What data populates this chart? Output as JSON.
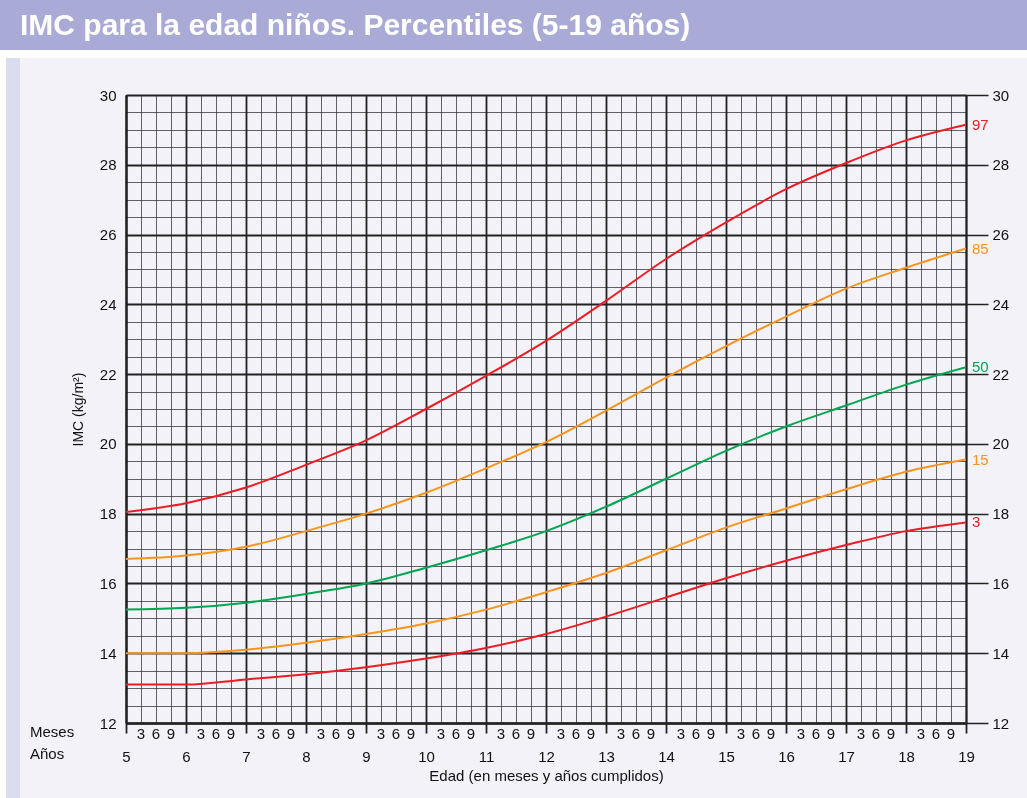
{
  "chart_data": {
    "type": "line",
    "title": "IMC para la edad niños. Percentiles (5-19 años)",
    "xlabel": "Edad (en meses y años cumplidos)",
    "ylabel": "IMC (kg/m²)",
    "x": [
      5,
      6,
      7,
      8,
      9,
      10,
      11,
      12,
      13,
      14,
      15,
      16,
      17,
      18,
      19
    ],
    "series": [
      {
        "name": "97",
        "color": "#ed1c24",
        "values": [
          18.05,
          18.3,
          18.75,
          19.4,
          20.1,
          21.0,
          21.95,
          22.95,
          24.1,
          25.3,
          26.35,
          27.3,
          28.05,
          28.7,
          29.15
        ]
      },
      {
        "name": "85",
        "color": "#f7941d",
        "values": [
          16.7,
          16.8,
          17.05,
          17.5,
          18.0,
          18.6,
          19.3,
          20.05,
          20.95,
          21.9,
          22.8,
          23.65,
          24.45,
          25.05,
          25.6
        ]
      },
      {
        "name": "50",
        "color": "#00a651",
        "values": [
          15.25,
          15.3,
          15.45,
          15.7,
          16.0,
          16.45,
          16.95,
          17.5,
          18.2,
          19.0,
          19.8,
          20.5,
          21.1,
          21.7,
          22.2
        ]
      },
      {
        "name": "15",
        "color": "#f7941d",
        "values": [
          14.0,
          14.0,
          14.1,
          14.3,
          14.55,
          14.85,
          15.25,
          15.75,
          16.3,
          16.95,
          17.6,
          18.15,
          18.7,
          19.2,
          19.55
        ]
      },
      {
        "name": "3",
        "color": "#ed1c24",
        "values": [
          13.1,
          13.1,
          13.25,
          13.4,
          13.6,
          13.85,
          14.15,
          14.55,
          15.05,
          15.6,
          16.15,
          16.65,
          17.1,
          17.5,
          17.75
        ]
      }
    ],
    "xlim": [
      5,
      19
    ],
    "xticks": [
      5,
      {
        "value": 5.25,
        "label": null
      },
      {
        "value": 5.5,
        "label": null
      },
      {
        "value": 5.75,
        "label": null
      },
      6,
      {
        "value": 6.25,
        "label": null
      },
      {
        "value": 6.5,
        "label": null
      },
      {
        "value": 6.75,
        "label": null
      },
      7,
      {
        "value": 7.25,
        "label": null
      },
      {
        "value": 7.5,
        "label": null
      },
      {
        "value": 7.75,
        "label": null
      },
      8,
      {
        "value": 8.25,
        "label": null
      },
      {
        "value": 8.5,
        "label": null
      },
      {
        "value": 8.75,
        "label": null
      },
      9,
      {
        "value": 9.25,
        "label": null
      },
      {
        "value": 9.5,
        "label": null
      },
      {
        "value": 9.75,
        "label": null
      },
      10,
      {
        "value": 10.25,
        "label": null
      },
      {
        "value": 10.5,
        "label": null
      },
      {
        "value": 10.75,
        "label": null
      },
      11,
      {
        "value": 11.25,
        "label": null
      },
      {
        "value": 11.5,
        "label": null
      },
      {
        "value": 11.75,
        "label": null
      },
      12,
      {
        "value": 12.25,
        "label": null
      },
      {
        "value": 12.5,
        "label": null
      },
      {
        "value": 12.75,
        "label": null
      },
      13,
      {
        "value": 13.25,
        "label": null
      },
      {
        "value": 13.5,
        "label": null
      },
      {
        "value": 13.75,
        "label": null
      },
      14,
      {
        "value": 14.25,
        "label": null
      },
      {
        "value": 14.5,
        "label": null
      },
      {
        "value": 14.75,
        "label": null
      },
      15,
      {
        "value": 15.25,
        "label": null
      },
      {
        "value": 15.5,
        "label": null
      },
      {
        "value": 15.75,
        "label": null
      },
      16,
      {
        "value": 16.25,
        "label": null
      },
      {
        "value": 16.5,
        "label": null
      },
      {
        "value": 16.75,
        "label": null
      },
      17,
      {
        "value": 17.25,
        "label": null
      },
      {
        "value": 17.5,
        "label": null
      },
      {
        "value": 17.75,
        "label": null
      },
      18,
      {
        "value": 18.25,
        "label": null
      },
      {
        "value": 18.5,
        "label": null
      },
      {
        "value": 18.75,
        "label": null
      },
      19
    ],
    "ylim": [
      12,
      30
    ],
    "yticks": [
      12,
      {
        "value": 12.5,
        "label": null
      },
      {
        "value": 13,
        "label": null
      },
      {
        "value": 13.5,
        "label": null
      },
      14,
      {
        "value": 14.5,
        "label": null
      },
      {
        "value": 15,
        "label": null
      },
      {
        "value": 15.5,
        "label": null
      },
      16,
      {
        "value": 16.5,
        "label": null
      },
      {
        "value": 17,
        "label": null
      },
      {
        "value": 17.5,
        "label": null
      },
      18,
      {
        "value": 18.5,
        "label": null
      },
      {
        "value": 19,
        "label": null
      },
      {
        "value": 19.5,
        "label": null
      },
      20,
      {
        "value": 20.5,
        "label": null
      },
      {
        "value": 21,
        "label": null
      },
      {
        "value": 21.5,
        "label": null
      },
      22,
      {
        "value": 22.5,
        "label": null
      },
      {
        "value": 23,
        "label": null
      },
      {
        "value": 23.5,
        "label": null
      },
      24,
      {
        "value": 24.5,
        "label": null
      },
      {
        "value": 25,
        "label": null
      },
      {
        "value": 25.5,
        "label": null
      },
      26,
      {
        "value": 26.5,
        "label": null
      },
      {
        "value": 27,
        "label": null
      },
      {
        "value": 27.5,
        "label": null
      },
      28,
      {
        "value": 28.5,
        "label": null
      },
      {
        "value": 29,
        "label": null
      },
      {
        "value": 29.5,
        "label": null
      },
      30
    ],
    "y2lim": [
      12,
      30
    ],
    "y2ticks": [
      12,
      14,
      16,
      18,
      20,
      22,
      24,
      26,
      28,
      30
    ],
    "grid": true,
    "legend": false,
    "annotations": [
      "Meses",
      "Años",
      "3",
      "6",
      "9",
      "3",
      "6",
      "9",
      "3",
      "6",
      "9",
      "3",
      "6",
      "9",
      "3",
      "6",
      "9",
      "3",
      "6",
      "9",
      "3",
      "6",
      "9",
      "3",
      "6",
      "9",
      "3",
      "6",
      "9",
      "3",
      "6",
      "9",
      "3",
      "6",
      "9",
      "3",
      "6",
      "9",
      "3",
      "6",
      "9",
      "3",
      "6",
      "9"
    ]
  }
}
